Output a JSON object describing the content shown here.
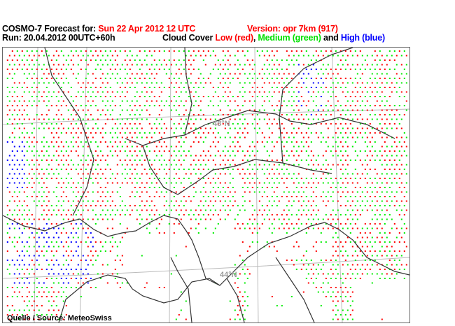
{
  "header": {
    "model_label": "COSMO-7 Forecast for:",
    "valid_time": "Sun 22 Apr 2012 12 UTC",
    "version": "Version: opr 7km (917)",
    "run": "Run: 20.04.2012 00UTC+60h",
    "cloud_cover_label": "Cloud Cover",
    "low_label": "Low (red)",
    "separator": ",",
    "medium_label": "Medium (green)",
    "and_label": "and",
    "high_label": "High (blue)"
  },
  "map": {
    "latitude_labels": [
      "48°N",
      "44°N"
    ],
    "source": "Quelle / Source: MeteoSwiss",
    "colors": {
      "low": "#ff0000",
      "medium": "#00ee00",
      "high": "#0000ff",
      "coast": "#333333",
      "graticule": "#bbbbbb"
    }
  }
}
